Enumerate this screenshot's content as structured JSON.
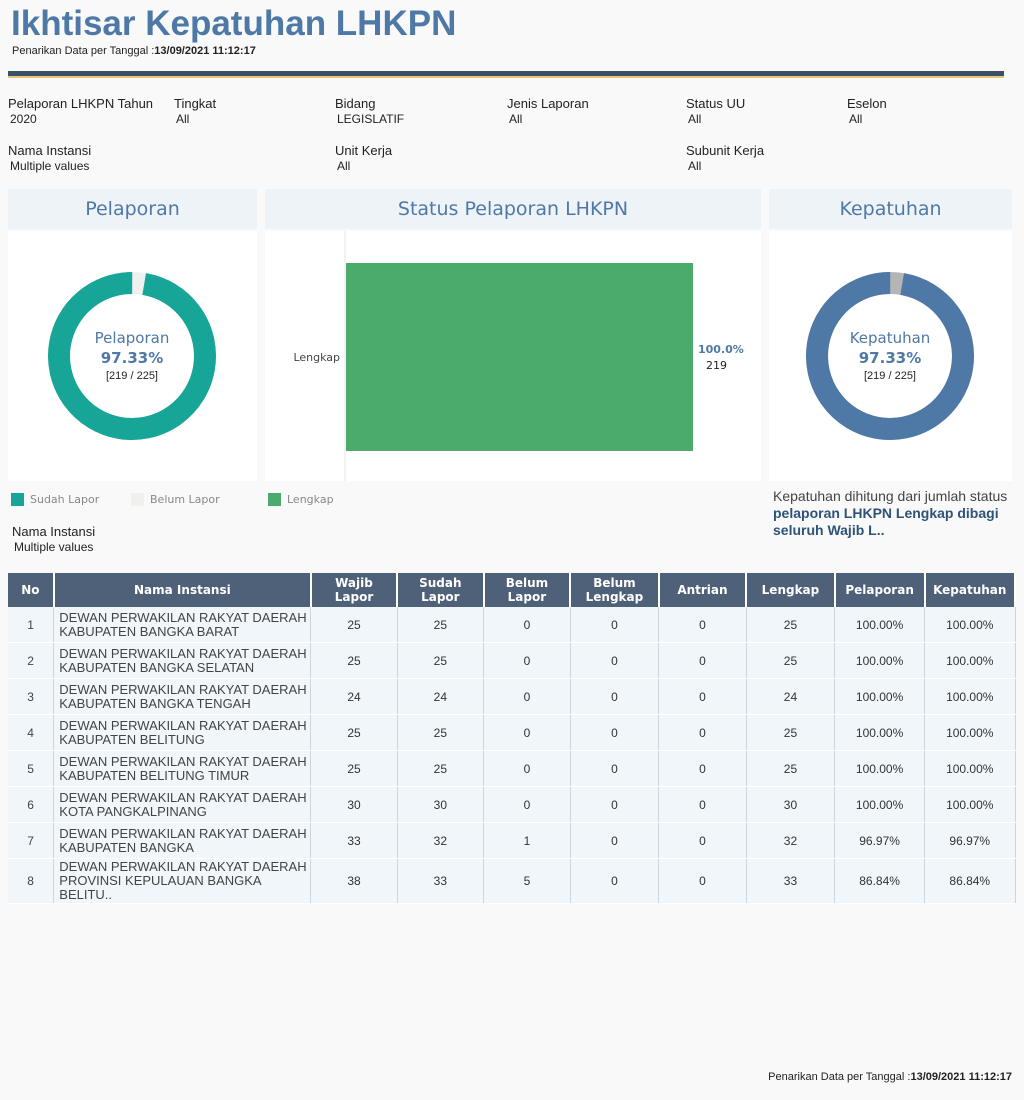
{
  "header": {
    "title": "Ikhtisar Kepatuhan LHKPN",
    "subtitle_prefix": "Penarikan Data per Tanggal :",
    "subtitle_date": "13/09/2021 11:12:17"
  },
  "filters": [
    {
      "label": "Pelaporan LHKPN Tahun",
      "value": "2020"
    },
    {
      "label": "Tingkat",
      "value": "All"
    },
    {
      "label": "Bidang",
      "value": "LEGISLATIF"
    },
    {
      "label": "Jenis Laporan",
      "value": "All"
    },
    {
      "label": "Status UU",
      "value": "All"
    },
    {
      "label": "Eselon",
      "value": "All"
    },
    {
      "label": "Nama Instansi",
      "value": "Multiple values"
    },
    {
      "label": "Unit Kerja",
      "value": "All"
    },
    {
      "label": "Subunit Kerja",
      "value": "All"
    }
  ],
  "pelaporan": {
    "title": "Pelaporan",
    "label": "Pelaporan",
    "percent": "97.33%",
    "fraction": "[219 / 225]",
    "value": 0.9733,
    "color_main": "#17a598",
    "color_rest": "#f0f0ee",
    "legend": [
      {
        "label": "Sudah Lapor",
        "color": "#17a598"
      },
      {
        "label": "Belum Lapor",
        "color": "#f0f0ee"
      }
    ]
  },
  "status": {
    "title": "Status Pelaporan LHKPN",
    "chart_data": {
      "type": "bar",
      "orientation": "horizontal",
      "categories": [
        "Lengkap"
      ],
      "values": [
        219
      ],
      "percent_labels": [
        "100.0%"
      ],
      "value_labels": [
        "219"
      ],
      "color": "#4aab6d"
    },
    "legend": [
      {
        "label": "Lengkap",
        "color": "#4aab6d"
      }
    ]
  },
  "kepatuhan": {
    "title": "Kepatuhan",
    "label": "Kepatuhan",
    "percent": "97.33%",
    "fraction": "[219 / 225]",
    "value": 0.9733,
    "color_main": "#4e79a7",
    "color_rest": "#b5b5b5",
    "note_plain": "Kepatuhan dihitung dari jumlah status ",
    "note_bold": "pelaporan LHKPN Lengkap dibagi seluruh Wajib L.."
  },
  "instansi_filter": {
    "label": "Nama Instansi",
    "value": "Multiple values"
  },
  "table": {
    "columns": [
      "No",
      "Nama Instansi",
      "Wajib Lapor",
      "Sudah Lapor",
      "Belum Lapor",
      "Belum Lengkap",
      "Antrian",
      "Lengkap",
      "Pelaporan",
      "Kepatuhan"
    ],
    "rows": [
      [
        "1",
        "DEWAN PERWAKILAN RAKYAT DAERAH KABUPATEN BANGKA BARAT",
        "25",
        "25",
        "0",
        "0",
        "0",
        "25",
        "100.00%",
        "100.00%"
      ],
      [
        "2",
        "DEWAN PERWAKILAN RAKYAT DAERAH KABUPATEN BANGKA SELATAN",
        "25",
        "25",
        "0",
        "0",
        "0",
        "25",
        "100.00%",
        "100.00%"
      ],
      [
        "3",
        "DEWAN PERWAKILAN RAKYAT DAERAH KABUPATEN BANGKA TENGAH",
        "24",
        "24",
        "0",
        "0",
        "0",
        "24",
        "100.00%",
        "100.00%"
      ],
      [
        "4",
        "DEWAN PERWAKILAN RAKYAT DAERAH KABUPATEN BELITUNG",
        "25",
        "25",
        "0",
        "0",
        "0",
        "25",
        "100.00%",
        "100.00%"
      ],
      [
        "5",
        "DEWAN PERWAKILAN RAKYAT DAERAH KABUPATEN BELITUNG TIMUR",
        "25",
        "25",
        "0",
        "0",
        "0",
        "25",
        "100.00%",
        "100.00%"
      ],
      [
        "6",
        "DEWAN PERWAKILAN RAKYAT DAERAH KOTA PANGKALPINANG",
        "30",
        "30",
        "0",
        "0",
        "0",
        "30",
        "100.00%",
        "100.00%"
      ],
      [
        "7",
        "DEWAN PERWAKILAN RAKYAT DAERAH KABUPATEN BANGKA",
        "33",
        "32",
        "1",
        "0",
        "0",
        "32",
        "96.97%",
        "96.97%"
      ],
      [
        "8",
        "DEWAN PERWAKILAN RAKYAT DAERAH PROVINSI KEPULAUAN BANGKA BELITU..",
        "38",
        "33",
        "5",
        "0",
        "0",
        "33",
        "86.84%",
        "86.84%"
      ]
    ]
  },
  "footer": {
    "prefix": "Penarikan Data per Tanggal :",
    "date": "13/09/2021 11:12:17"
  }
}
